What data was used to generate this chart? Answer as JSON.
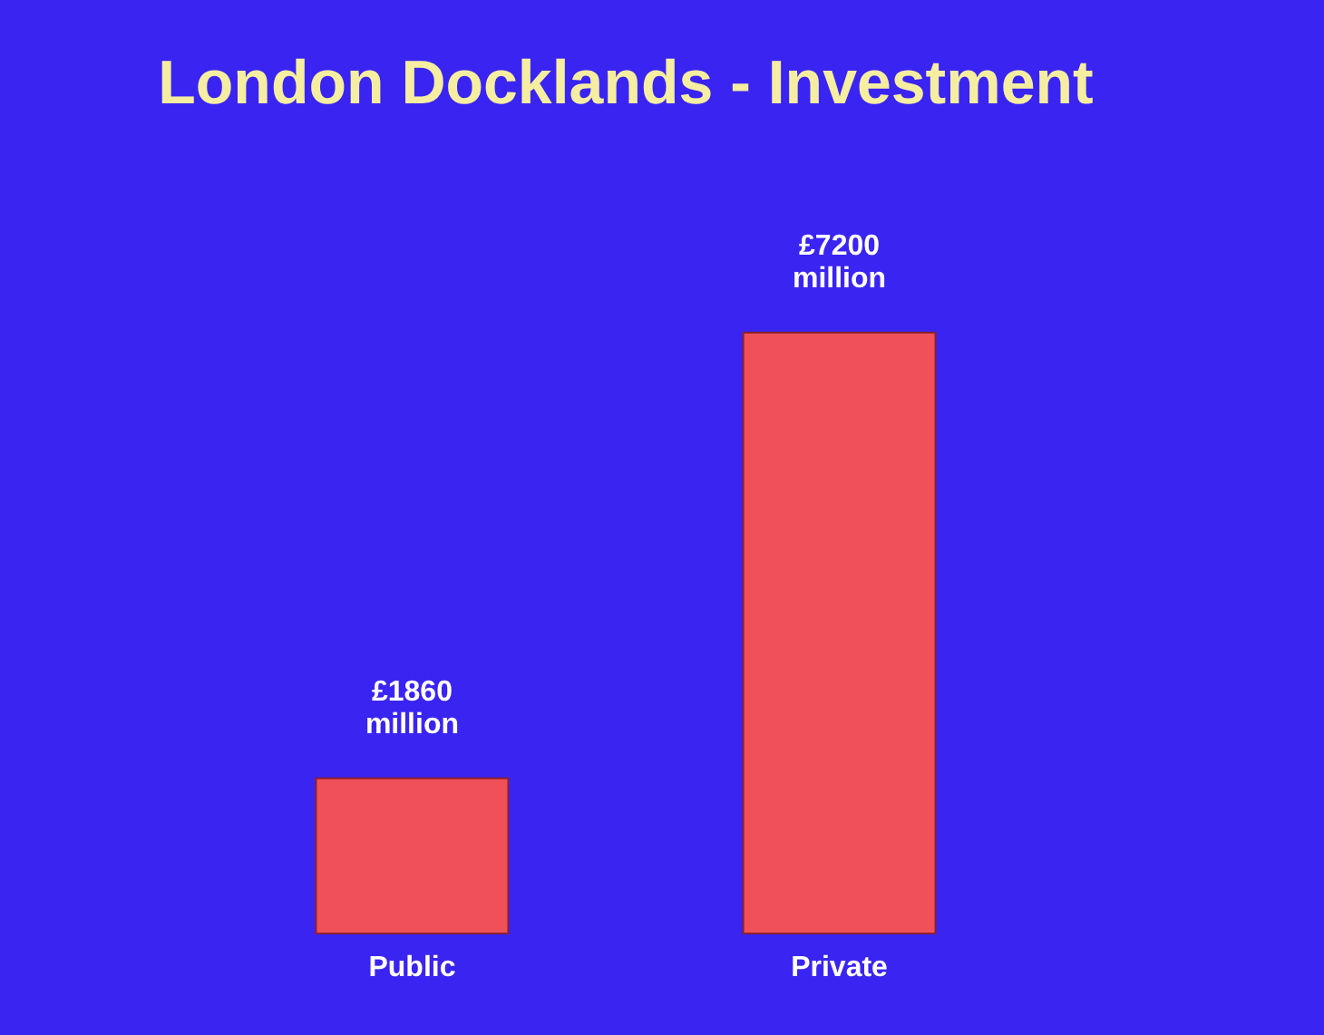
{
  "chart_data": {
    "type": "bar",
    "title": "London Docklands - Investment",
    "categories": [
      "Public",
      "Private"
    ],
    "values": [
      1860,
      7200
    ],
    "value_labels": [
      "£1860 million",
      "£7200 million"
    ],
    "color": "#f05058"
  }
}
